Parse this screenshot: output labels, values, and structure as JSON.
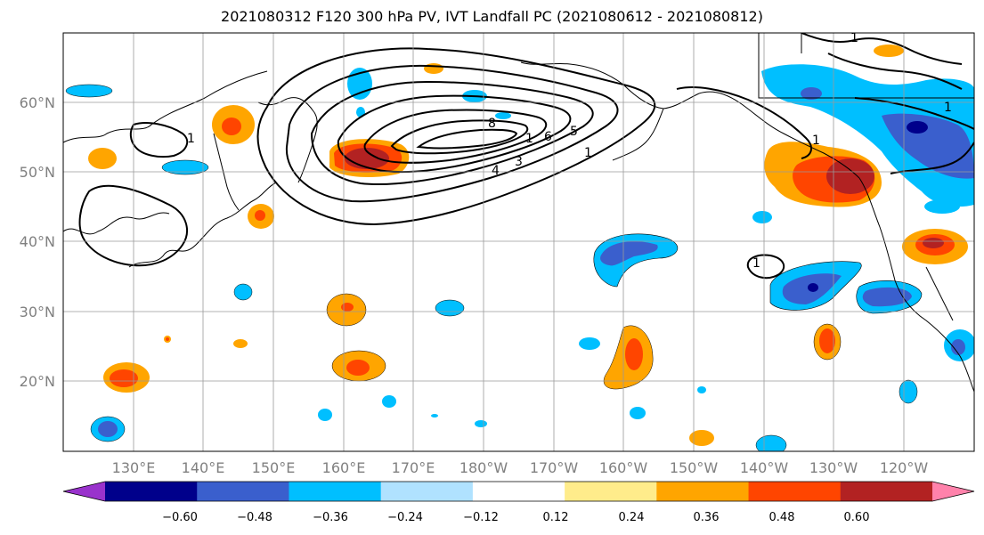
{
  "title": "2021080312 F120 300 hPa PV, IVT Landfall PC (2021080612 - 2021080812)",
  "map": {
    "lon_ticks": [
      "130°E",
      "140°E",
      "150°E",
      "160°E",
      "170°E",
      "180°W",
      "170°W",
      "160°W",
      "150°W",
      "140°W",
      "130°W",
      "120°W"
    ],
    "lat_ticks": [
      "60°N",
      "50°N",
      "40°N",
      "30°N",
      "20°N"
    ],
    "contour_labels": [
      "8",
      "1",
      "4",
      "3",
      "6",
      "5",
      "1",
      "1",
      "1",
      "1",
      "1",
      "1"
    ]
  },
  "colorbar": {
    "tick_labels": [
      "−0.60",
      "−0.48",
      "−0.36",
      "−0.24",
      "−0.12",
      "0.12",
      "0.24",
      "0.36",
      "0.48",
      "0.60"
    ],
    "colors": [
      "#9932cc",
      "#00008b",
      "#3a5fcd",
      "#00bfff",
      "#b0e2ff",
      "#ffffff",
      "#ffec8b",
      "#ffa500",
      "#ff4500",
      "#b22222",
      "#ff82ab"
    ]
  }
}
